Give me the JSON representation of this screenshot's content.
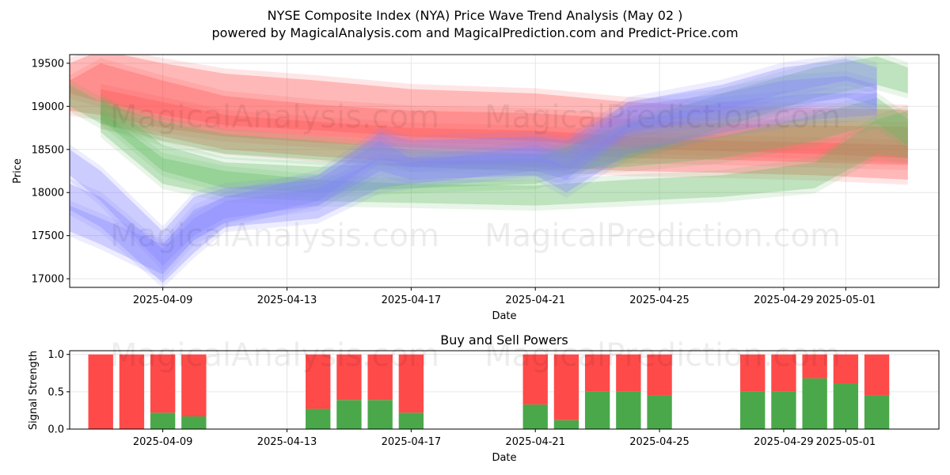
{
  "header": {
    "title": "NYSE Composite Index (NYA) Price Wave Trend Analysis (May 02 )",
    "subtitle": "powered by MagicalAnalysis.com and MagicalPrediction.com and Predict-Price.com"
  },
  "watermarks": [
    "MagicalAnalysis.com",
    "MagicalPrediction.com"
  ],
  "colors": {
    "buy": "#4aa84a",
    "sell": "#ff4a4a",
    "blue_band": "#8080ff",
    "green_band": "#5cb85c",
    "red_band": "#ff5050",
    "brown_band": "#b85c30"
  },
  "chart_data": [
    {
      "type": "area",
      "ylabel": "Price",
      "xlabel": "Date",
      "xlim": [
        "2025-04-06",
        "2025-05-04"
      ],
      "ylim": [
        16900,
        19600
      ],
      "yticks": [
        17000,
        17500,
        18000,
        18500,
        19000,
        19500
      ],
      "xticks": [
        "2025-04-09",
        "2025-04-13",
        "2025-04-17",
        "2025-04-21",
        "2025-04-25",
        "2025-04-29",
        "2025-05-01"
      ],
      "grid": true,
      "bands": [
        {
          "color": "red",
          "points": [
            [
              "2025-04-06",
              19150,
              19500
            ],
            [
              "2025-04-07",
              19050,
              19650
            ],
            [
              "2025-04-09",
              18900,
              19500
            ],
            [
              "2025-04-11",
              18780,
              19380
            ],
            [
              "2025-04-14",
              18720,
              19300
            ],
            [
              "2025-04-17",
              18650,
              19200
            ],
            [
              "2025-04-21",
              18600,
              19150
            ],
            [
              "2025-04-24",
              18520,
              19050
            ],
            [
              "2025-04-27",
              18480,
              19000
            ],
            [
              "2025-04-30",
              18450,
              18980
            ],
            [
              "2025-05-03",
              18400,
              18960
            ]
          ]
        },
        {
          "color": "red",
          "points": [
            [
              "2025-04-06",
              18950,
              19300
            ],
            [
              "2025-04-07",
              18900,
              19500
            ],
            [
              "2025-04-09",
              18750,
              19300
            ],
            [
              "2025-04-11",
              18650,
              19120
            ],
            [
              "2025-04-14",
              18580,
              19020
            ],
            [
              "2025-04-17",
              18520,
              18950
            ],
            [
              "2025-04-21",
              18480,
              18920
            ],
            [
              "2025-04-24",
              18400,
              18850
            ],
            [
              "2025-04-27",
              18380,
              18800
            ],
            [
              "2025-04-30",
              18350,
              18780
            ],
            [
              "2025-05-03",
              18320,
              18760
            ]
          ]
        },
        {
          "color": "red",
          "points": [
            [
              "2025-04-07",
              18800,
              19200
            ],
            [
              "2025-04-09",
              18650,
              19050
            ],
            [
              "2025-04-11",
              18500,
              18900
            ],
            [
              "2025-04-14",
              18420,
              18820
            ],
            [
              "2025-04-17",
              18350,
              18750
            ],
            [
              "2025-04-21",
              18300,
              18720
            ],
            [
              "2025-04-24",
              18250,
              18650
            ],
            [
              "2025-04-27",
              18230,
              18600
            ],
            [
              "2025-04-30",
              18200,
              18580
            ],
            [
              "2025-05-03",
              18150,
              18550
            ]
          ]
        },
        {
          "color": "green",
          "points": [
            [
              "2025-04-06",
              19000,
              19250
            ],
            [
              "2025-04-07",
              18800,
              19050
            ],
            [
              "2025-04-09",
              18600,
              18820
            ],
            [
              "2025-04-11",
              18450,
              18680
            ],
            [
              "2025-04-14",
              18380,
              18600
            ],
            [
              "2025-04-17",
              18300,
              18500
            ],
            [
              "2025-04-21",
              18250,
              18450
            ],
            [
              "2025-04-24",
              18300,
              18520
            ],
            [
              "2025-04-27",
              18400,
              18650
            ],
            [
              "2025-04-30",
              18600,
              18900
            ],
            [
              "2025-05-02",
              18800,
              19100
            ],
            [
              "2025-05-03",
              18550,
              18850
            ]
          ]
        },
        {
          "color": "green",
          "points": [
            [
              "2025-04-07",
              18700,
              18950
            ],
            [
              "2025-04-09",
              18100,
              18400
            ],
            [
              "2025-04-11",
              17950,
              18250
            ],
            [
              "2025-04-14",
              17900,
              18150
            ],
            [
              "2025-04-17",
              17880,
              18100
            ],
            [
              "2025-04-21",
              17850,
              18080
            ],
            [
              "2025-04-24",
              17900,
              18150
            ],
            [
              "2025-04-27",
              17950,
              18200
            ],
            [
              "2025-04-30",
              18050,
              18350
            ],
            [
              "2025-05-02",
              18450,
              18850
            ],
            [
              "2025-05-03",
              18400,
              18950
            ]
          ]
        },
        {
          "color": "green",
          "points": [
            [
              "2025-04-07",
              18850,
              19100
            ],
            [
              "2025-04-09",
              18250,
              18550
            ],
            [
              "2025-04-11",
              18050,
              18350
            ],
            [
              "2025-04-14",
              18000,
              18300
            ],
            [
              "2025-04-17",
              18050,
              18350
            ],
            [
              "2025-04-21",
              18100,
              18400
            ],
            [
              "2025-04-24",
              18400,
              18800
            ],
            [
              "2025-04-27",
              18750,
              19150
            ],
            [
              "2025-04-30",
              19100,
              19450
            ],
            [
              "2025-05-02",
              19250,
              19580
            ],
            [
              "2025-05-03",
              19150,
              19450
            ]
          ]
        },
        {
          "color": "blue",
          "points": [
            [
              "2025-04-06",
              18200,
              18500
            ],
            [
              "2025-04-07",
              17900,
              18250
            ],
            [
              "2025-04-09",
              17150,
              17550
            ],
            [
              "2025-04-10",
              17500,
              17950
            ],
            [
              "2025-04-11",
              17700,
              18050
            ],
            [
              "2025-04-14",
              17850,
              18150
            ],
            [
              "2025-04-16",
              18250,
              18600
            ],
            [
              "2025-04-17",
              18150,
              18400
            ],
            [
              "2025-04-21",
              18200,
              18450
            ],
            [
              "2025-04-22",
              18000,
              18300
            ],
            [
              "2025-04-24",
              18450,
              18800
            ],
            [
              "2025-04-27",
              18700,
              19050
            ],
            [
              "2025-04-30",
              18850,
              19150
            ],
            [
              "2025-05-02",
              18900,
              19150
            ]
          ]
        },
        {
          "color": "blue",
          "points": [
            [
              "2025-04-06",
              17800,
              18100
            ],
            [
              "2025-04-07",
              17600,
              17950
            ],
            [
              "2025-04-09",
              16950,
              17350
            ],
            [
              "2025-04-10",
              17300,
              17700
            ],
            [
              "2025-04-11",
              17600,
              17900
            ],
            [
              "2025-04-14",
              17700,
              18050
            ],
            [
              "2025-04-16",
              18050,
              18400
            ],
            [
              "2025-04-17",
              18100,
              18350
            ],
            [
              "2025-04-21",
              18250,
              18550
            ],
            [
              "2025-04-22",
              18150,
              18450
            ],
            [
              "2025-04-24",
              18700,
              19000
            ],
            [
              "2025-04-27",
              18850,
              19150
            ],
            [
              "2025-04-29",
              19000,
              19300
            ],
            [
              "2025-05-01",
              19100,
              19350
            ],
            [
              "2025-05-02",
              19000,
              19250
            ]
          ]
        },
        {
          "color": "blue",
          "points": [
            [
              "2025-04-06",
              17550,
              17850
            ],
            [
              "2025-04-07",
              17400,
              17700
            ],
            [
              "2025-04-09",
              17050,
              17400
            ],
            [
              "2025-04-10",
              17450,
              17800
            ],
            [
              "2025-04-11",
              17650,
              17950
            ],
            [
              "2025-04-14",
              17900,
              18200
            ],
            [
              "2025-04-16",
              18400,
              18700
            ],
            [
              "2025-04-17",
              18300,
              18600
            ],
            [
              "2025-04-21",
              18350,
              18650
            ],
            [
              "2025-04-22",
              18300,
              18600
            ],
            [
              "2025-04-24",
              18750,
              19050
            ],
            [
              "2025-04-27",
              18950,
              19250
            ],
            [
              "2025-04-29",
              19150,
              19450
            ],
            [
              "2025-05-01",
              19300,
              19550
            ],
            [
              "2025-05-02",
              19200,
              19450
            ]
          ]
        }
      ]
    },
    {
      "type": "bar",
      "title": "Buy and Sell Powers",
      "ylabel": "Signal Strength",
      "xlabel": "Date",
      "xlim": [
        "2025-04-06",
        "2025-05-04"
      ],
      "ylim": [
        0,
        1.05
      ],
      "yticks": [
        0.0,
        0.5,
        1.0
      ],
      "xticks": [
        "2025-04-09",
        "2025-04-13",
        "2025-04-17",
        "2025-04-21",
        "2025-04-25",
        "2025-04-29",
        "2025-05-01"
      ],
      "grid": true,
      "categories": [
        "2025-04-07",
        "2025-04-08",
        "2025-04-09",
        "2025-04-10",
        "2025-04-14",
        "2025-04-15",
        "2025-04-16",
        "2025-04-17",
        "2025-04-21",
        "2025-04-22",
        "2025-04-23",
        "2025-04-24",
        "2025-04-25",
        "2025-04-28",
        "2025-04-29",
        "2025-04-30",
        "2025-05-01",
        "2025-05-02"
      ],
      "series": [
        {
          "name": "Buy",
          "values": [
            0.0,
            0.0,
            0.22,
            0.17,
            0.27,
            0.39,
            0.39,
            0.22,
            0.33,
            0.12,
            0.5,
            0.5,
            0.45,
            0.5,
            0.5,
            0.68,
            0.61,
            0.45
          ]
        },
        {
          "name": "Sell",
          "values": [
            1.0,
            1.0,
            0.78,
            0.83,
            0.73,
            0.61,
            0.61,
            0.78,
            0.67,
            0.88,
            0.5,
            0.5,
            0.55,
            0.5,
            0.5,
            0.32,
            0.39,
            0.55
          ]
        }
      ]
    }
  ]
}
